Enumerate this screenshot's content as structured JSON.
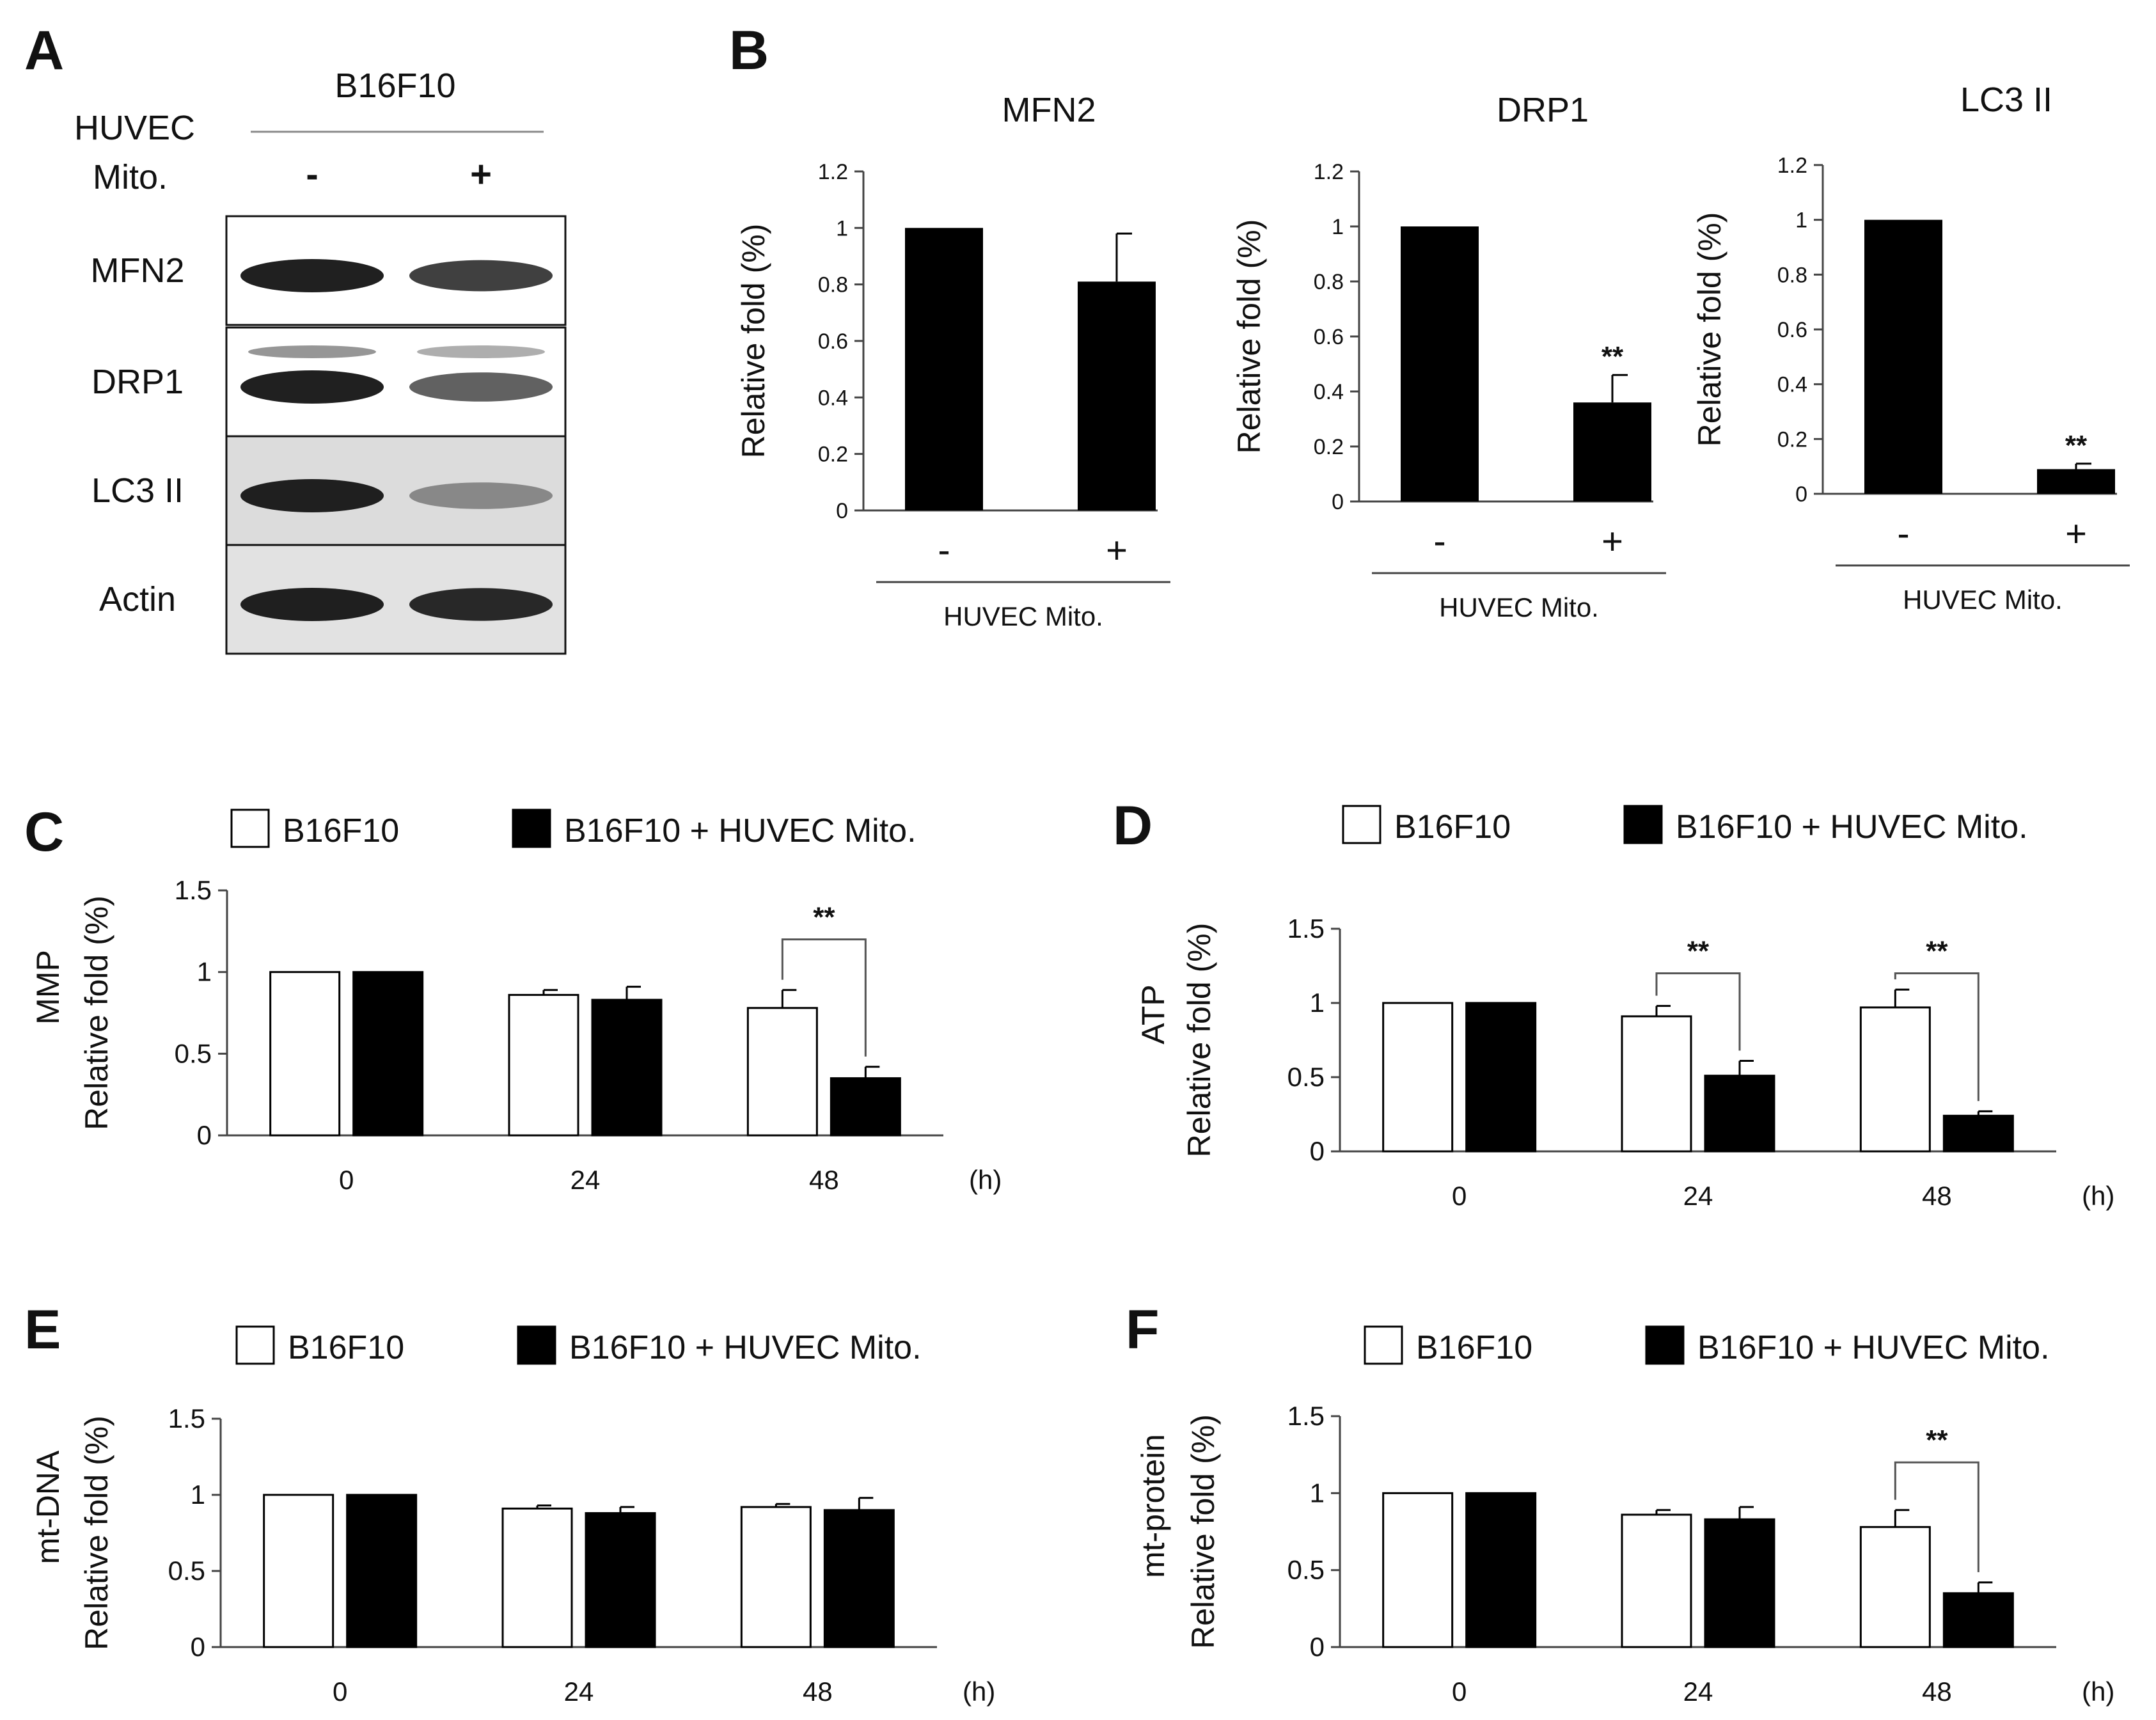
{
  "blot": {
    "letter": "A",
    "cell_line": "B16F10",
    "row1": "HUVEC",
    "row2": "Mito.",
    "lanes": [
      "-",
      "+"
    ],
    "bands": [
      {
        "name": "MFN2",
        "intensity": [
          1.0,
          0.8
        ],
        "background": "#ffffff",
        "upper": false
      },
      {
        "name": "DRP1",
        "intensity": [
          1.0,
          0.6
        ],
        "background": "#ffffff",
        "upper": true
      },
      {
        "name": "LC3 II",
        "intensity": [
          1.0,
          0.35
        ],
        "background": "#dcdcdc",
        "upper": false
      },
      {
        "name": "Actin",
        "intensity": [
          1.0,
          0.95
        ],
        "background": "#e2e2e2",
        "upper": false
      }
    ]
  },
  "chart_data": [
    {
      "panel": "B",
      "type": "bar",
      "title": "MFN2",
      "ylabel": "Relative fold (%)",
      "categories": [
        "-",
        "+"
      ],
      "values": [
        1.0,
        0.81
      ],
      "errors": [
        0,
        0.17
      ],
      "significance": [
        "",
        ""
      ],
      "group_label": "HUVEC Mito.",
      "ylim": [
        0,
        1.2
      ],
      "yticks": [
        "0",
        "0.2",
        "0.4",
        "0.6",
        "0.8",
        "1",
        "1.2"
      ]
    },
    {
      "panel": "",
      "type": "bar",
      "title": "DRP1",
      "ylabel": "Relative fold (%)",
      "categories": [
        "-",
        "+"
      ],
      "values": [
        1.0,
        0.36
      ],
      "errors": [
        0,
        0.1
      ],
      "significance": [
        "",
        "**"
      ],
      "group_label": "HUVEC Mito.",
      "ylim": [
        0,
        1.2
      ],
      "yticks": [
        "0",
        "0.2",
        "0.4",
        "0.6",
        "0.8",
        "1",
        "1.2"
      ]
    },
    {
      "panel": "",
      "type": "bar",
      "title": "LC3 II",
      "ylabel": "Relative fold (%)",
      "categories": [
        "-",
        "+"
      ],
      "values": [
        1.0,
        0.09
      ],
      "errors": [
        0,
        0.02
      ],
      "significance": [
        "",
        "**"
      ],
      "group_label": "HUVEC Mito.",
      "ylim": [
        0,
        1.2
      ],
      "yticks": [
        "0",
        "0.2",
        "0.4",
        "0.6",
        "0.8",
        "1",
        "1.2"
      ]
    },
    {
      "panel": "C",
      "type": "bar",
      "ylabel_top": "MMP",
      "ylabel": "Relative fold (%)",
      "legend": [
        "B16F10",
        "B16F10 + HUVEC Mito."
      ],
      "categories": [
        "0",
        "24",
        "48"
      ],
      "unit": "(h)",
      "series": [
        {
          "values": [
            1.0,
            0.86,
            0.78
          ],
          "errors": [
            0,
            0.03,
            0.11
          ],
          "color": "#ffffff"
        },
        {
          "values": [
            1.0,
            0.83,
            0.35
          ],
          "errors": [
            0,
            0.08,
            0.07
          ],
          "color": "#000000"
        }
      ],
      "brackets": [
        {
          "category": 2,
          "label": "**"
        }
      ],
      "ylim": [
        0,
        1.5
      ],
      "yticks": [
        "0",
        "0.5",
        "1",
        "1.5"
      ]
    },
    {
      "panel": "D",
      "type": "bar",
      "ylabel_top": "ATP",
      "ylabel": "Relative fold (%)",
      "legend": [
        "B16F10",
        "B16F10 + HUVEC Mito."
      ],
      "categories": [
        "0",
        "24",
        "48"
      ],
      "unit": "(h)",
      "series": [
        {
          "values": [
            1.0,
            0.91,
            0.97
          ],
          "errors": [
            0,
            0.07,
            0.12
          ],
          "color": "#ffffff"
        },
        {
          "values": [
            1.0,
            0.51,
            0.24
          ],
          "errors": [
            0,
            0.1,
            0.03
          ],
          "color": "#000000"
        }
      ],
      "brackets": [
        {
          "category": 1,
          "label": "**"
        },
        {
          "category": 2,
          "label": "**"
        }
      ],
      "ylim": [
        0,
        1.5
      ],
      "yticks": [
        "0",
        "0.5",
        "1",
        "1.5"
      ]
    },
    {
      "panel": "E",
      "type": "bar",
      "ylabel_top": "mt-DNA",
      "ylabel": "Relative fold (%)",
      "legend": [
        "B16F10",
        "B16F10 + HUVEC Mito."
      ],
      "categories": [
        "0",
        "24",
        "48"
      ],
      "unit": "(h)",
      "series": [
        {
          "values": [
            1.0,
            0.91,
            0.92
          ],
          "errors": [
            0,
            0.02,
            0.02
          ],
          "color": "#ffffff"
        },
        {
          "values": [
            1.0,
            0.88,
            0.9
          ],
          "errors": [
            0,
            0.04,
            0.08
          ],
          "color": "#000000"
        }
      ],
      "brackets": [],
      "ylim": [
        0,
        1.5
      ],
      "yticks": [
        "0",
        "0.5",
        "1",
        "1.5"
      ]
    },
    {
      "panel": "F",
      "type": "bar",
      "ylabel_top": "mt-protein",
      "ylabel": "Relative fold (%)",
      "legend": [
        "B16F10",
        "B16F10 + HUVEC Mito."
      ],
      "categories": [
        "0",
        "24",
        "48"
      ],
      "unit": "(h)",
      "series": [
        {
          "values": [
            1.0,
            0.86,
            0.78
          ],
          "errors": [
            0,
            0.03,
            0.11
          ],
          "color": "#ffffff"
        },
        {
          "values": [
            1.0,
            0.83,
            0.35
          ],
          "errors": [
            0,
            0.08,
            0.07
          ],
          "color": "#000000"
        }
      ],
      "brackets": [
        {
          "category": 2,
          "label": "**"
        }
      ],
      "ylim": [
        0,
        1.5
      ],
      "yticks": [
        "0",
        "0.5",
        "1",
        "1.5"
      ]
    }
  ]
}
